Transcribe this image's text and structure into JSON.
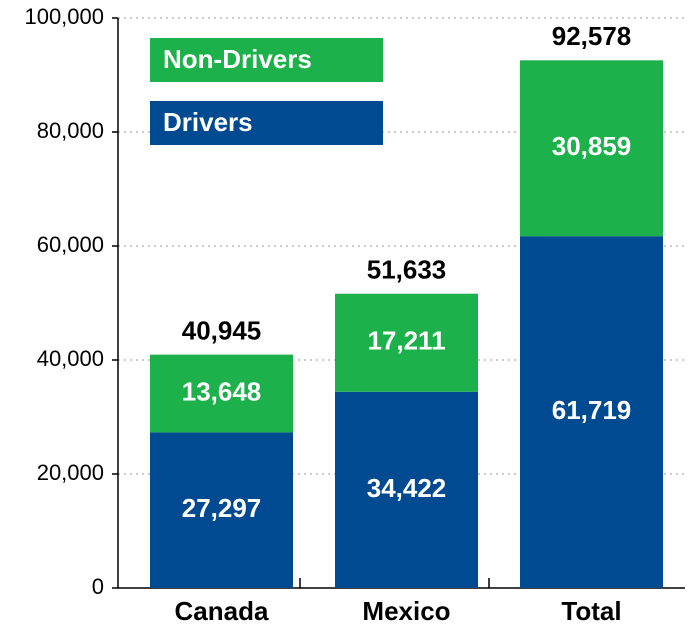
{
  "chart_data": {
    "type": "stacked_bar",
    "categories": [
      "Canada",
      "Mexico",
      "Total"
    ],
    "series": [
      {
        "name": "Drivers",
        "color": "#004a91",
        "values": [
          27297,
          34422,
          61719
        ],
        "value_labels": [
          "27,297",
          "34,422",
          "61,719"
        ]
      },
      {
        "name": "Non-Drivers",
        "color": "#1db14b",
        "values": [
          13648,
          17211,
          30859
        ],
        "value_labels": [
          "13,648",
          "17,211",
          "30,859"
        ]
      }
    ],
    "totals": [
      40945,
      51633,
      92578
    ],
    "total_labels": [
      "40,945",
      "51,633",
      "92,578"
    ],
    "ylim": [
      0,
      100000
    ],
    "yticks": [
      0,
      {
        "value": 20000,
        "label": "20,000"
      },
      {
        "value": 40000,
        "label": "40,000"
      },
      {
        "value": 60000,
        "label": "60,000"
      },
      {
        "value": 80000,
        "label": "80,000"
      },
      {
        "value": 100000,
        "label": "100,000"
      }
    ],
    "grid": true
  }
}
